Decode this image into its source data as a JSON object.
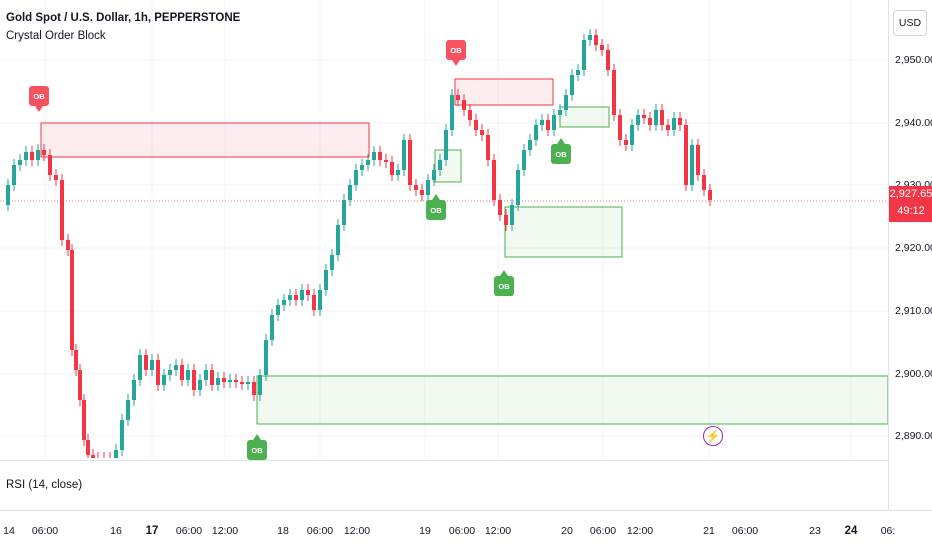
{
  "header": {
    "symbol_title": "Gold Spot / U.S. Dollar, 1h, PEPPERSTONE",
    "indicator_name": "Crystal Order Block"
  },
  "rsi": {
    "label": "RSI (14, close)"
  },
  "scale": {
    "currency": "USD",
    "price_labels": [
      "2,950.00",
      "2,940.00",
      "2,930.00",
      "2,920.00",
      "2,910.00",
      "2,900.00",
      "2,890.00"
    ],
    "last_price": "2,927.65",
    "countdown": "49:12"
  },
  "time_axis": {
    "labels": [
      "14",
      "06:00",
      "16",
      "17",
      "06:00",
      "12:00",
      "18",
      "06:00",
      "12:00",
      "19",
      "06:00",
      "12:00",
      "20",
      "06:00",
      "12:00",
      "21",
      "06:00",
      "23",
      "24",
      "06:"
    ]
  },
  "order_blocks": {
    "badge_text": "OB"
  },
  "colors": {
    "up": "#26a69a",
    "down": "#f23645",
    "bull_zone": "#4caf50",
    "bear_zone": "#f23645",
    "lightning": "#9c27b0"
  },
  "icons": {
    "alert": "lightning-icon"
  }
}
